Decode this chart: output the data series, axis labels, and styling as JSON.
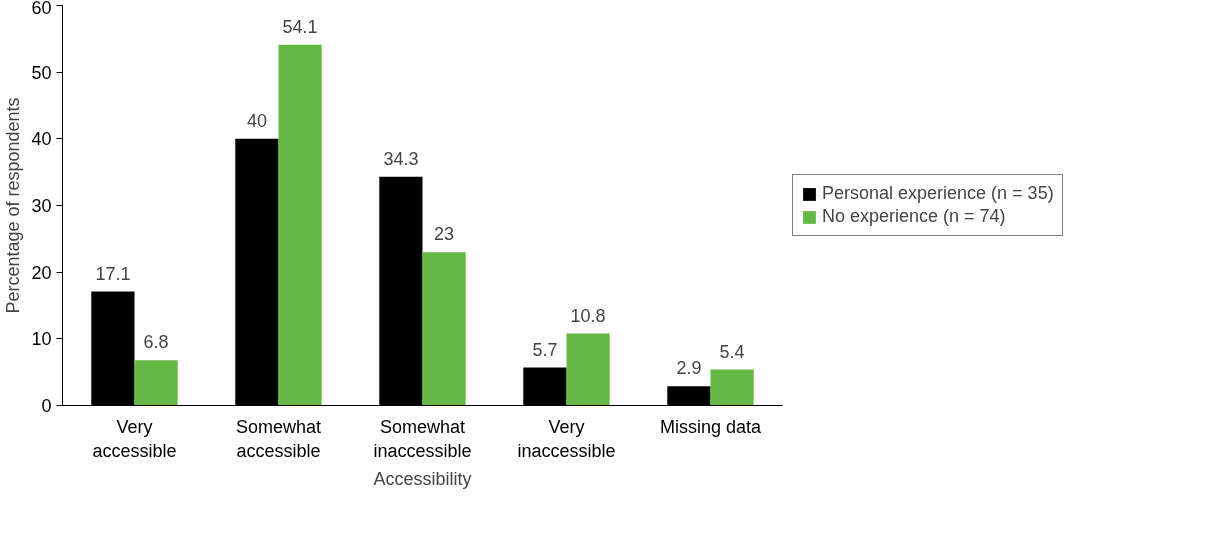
{
  "chart_data": {
    "type": "bar",
    "xlabel": "Accessibility",
    "ylabel": "Percentage of respondents",
    "categories": [
      "Very accessible",
      "Somewhat accessible",
      "Somewhat inaccessible",
      "Very inaccessible",
      "Missing data"
    ],
    "series": [
      {
        "name": "Personal experience (n = 35)",
        "color": "#000000",
        "values": [
          17.1,
          40,
          34.3,
          5.7,
          2.9
        ]
      },
      {
        "name": "No experience (n = 74)",
        "color": "#66b846",
        "values": [
          6.8,
          54.1,
          23,
          10.8,
          5.4
        ]
      }
    ],
    "ylim": [
      0,
      60
    ],
    "yticks": [
      0,
      10,
      20,
      30,
      40,
      50,
      60
    ],
    "grid": false,
    "legend": "right",
    "data_labels": true
  }
}
